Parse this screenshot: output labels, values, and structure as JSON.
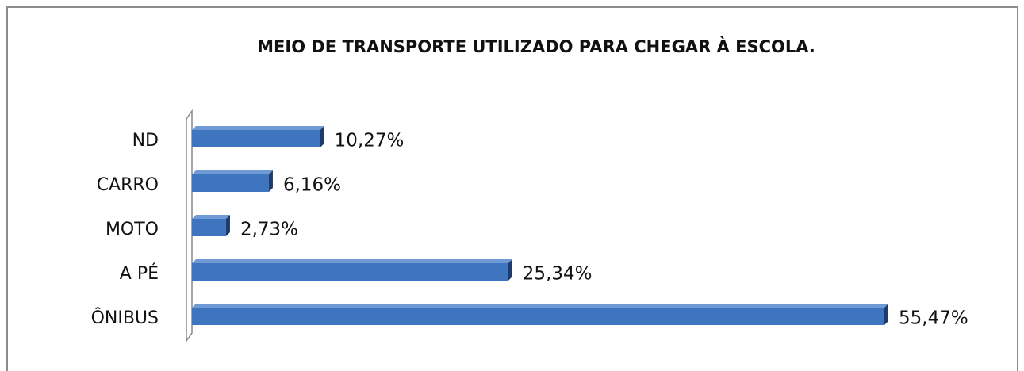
{
  "chart_data": {
    "type": "bar",
    "orientation": "horizontal",
    "title": "MEIO DE TRANSPORTE UTILIZADO PARA CHEGAR À ESCOLA.",
    "categories": [
      "ND",
      "CARRO",
      "MOTO",
      "A PÉ",
      "ÔNIBUS"
    ],
    "values": [
      10.27,
      6.16,
      2.73,
      25.34,
      55.47
    ],
    "value_labels": [
      "10,27%",
      "6,16%",
      "2,73%",
      "25,34%",
      "55,47%"
    ],
    "color": "#3f74bf"
  }
}
